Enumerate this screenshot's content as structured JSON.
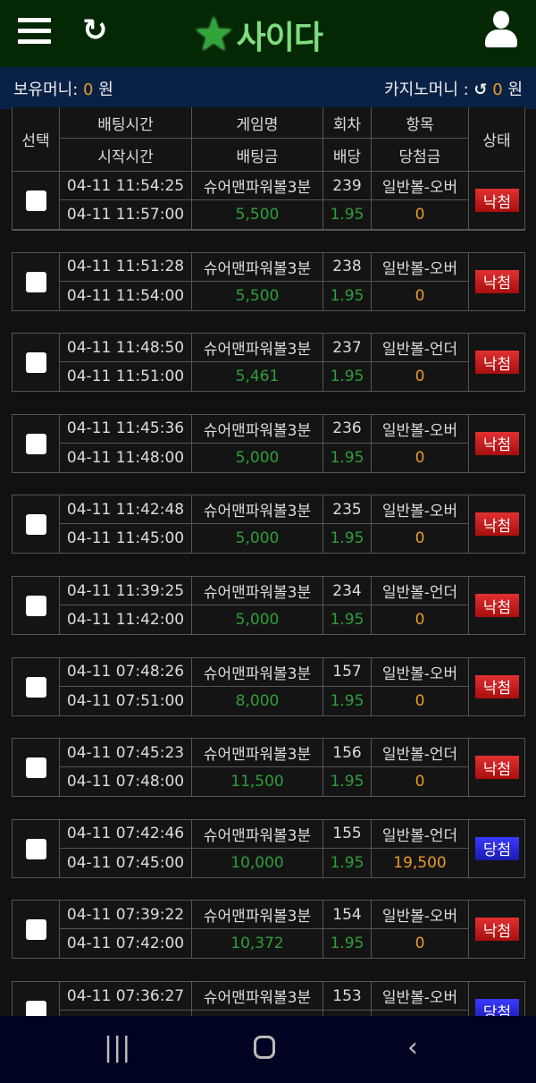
{
  "header": {
    "logo_text": "사이다",
    "logo_badge": "Chilsung Cider",
    "menu_icon": "hamburger-icon",
    "refresh_icon": "refresh-icon",
    "user_icon": "user-icon"
  },
  "balance": {
    "label": "보유머니:",
    "value": "0",
    "unit": "원",
    "casino_label": "카지노머니 :",
    "casino_value": "0",
    "casino_unit": "원"
  },
  "columns": {
    "select": "선택",
    "bet_time": "배팅시간",
    "start_time": "시작시간",
    "game": "게임명",
    "bet_amount": "배팅금",
    "round": "회차",
    "odds": "배당",
    "item": "항목",
    "payout": "당첨금",
    "status": "상태"
  },
  "colors": {
    "lose": "#c81e1e",
    "win": "#2828e0",
    "green": "#2e9e3a",
    "orange": "#e89a2a"
  },
  "rows": [
    {
      "bet_time": "04-11 11:54:25",
      "start_time": "04-11 11:57:00",
      "game": "슈어맨파워볼3분",
      "amount": "5,500",
      "round": "239",
      "odds": "1.95",
      "item": "일반볼-오버",
      "payout": "0",
      "status": "낙첨"
    },
    {
      "bet_time": "04-11 11:51:28",
      "start_time": "04-11 11:54:00",
      "game": "슈어맨파워볼3분",
      "amount": "5,500",
      "round": "238",
      "odds": "1.95",
      "item": "일반볼-오버",
      "payout": "0",
      "status": "낙첨"
    },
    {
      "bet_time": "04-11 11:48:50",
      "start_time": "04-11 11:51:00",
      "game": "슈어맨파워볼3분",
      "amount": "5,461",
      "round": "237",
      "odds": "1.95",
      "item": "일반볼-언더",
      "payout": "0",
      "status": "낙첨"
    },
    {
      "bet_time": "04-11 11:45:36",
      "start_time": "04-11 11:48:00",
      "game": "슈어맨파워볼3분",
      "amount": "5,000",
      "round": "236",
      "odds": "1.95",
      "item": "일반볼-오버",
      "payout": "0",
      "status": "낙첨"
    },
    {
      "bet_time": "04-11 11:42:48",
      "start_time": "04-11 11:45:00",
      "game": "슈어맨파워볼3분",
      "amount": "5,000",
      "round": "235",
      "odds": "1.95",
      "item": "일반볼-오버",
      "payout": "0",
      "status": "낙첨"
    },
    {
      "bet_time": "04-11 11:39:25",
      "start_time": "04-11 11:42:00",
      "game": "슈어맨파워볼3분",
      "amount": "5,000",
      "round": "234",
      "odds": "1.95",
      "item": "일반볼-언더",
      "payout": "0",
      "status": "낙첨"
    },
    {
      "bet_time": "04-11 07:48:26",
      "start_time": "04-11 07:51:00",
      "game": "슈어맨파워볼3분",
      "amount": "8,000",
      "round": "157",
      "odds": "1.95",
      "item": "일반볼-오버",
      "payout": "0",
      "status": "낙첨"
    },
    {
      "bet_time": "04-11 07:45:23",
      "start_time": "04-11 07:48:00",
      "game": "슈어맨파워볼3분",
      "amount": "11,500",
      "round": "156",
      "odds": "1.95",
      "item": "일반볼-언더",
      "payout": "0",
      "status": "낙첨"
    },
    {
      "bet_time": "04-11 07:42:46",
      "start_time": "04-11 07:45:00",
      "game": "슈어맨파워볼3분",
      "amount": "10,000",
      "round": "155",
      "odds": "1.95",
      "item": "일반볼-언더",
      "payout": "19,500",
      "status": "당첨"
    },
    {
      "bet_time": "04-11 07:39:22",
      "start_time": "04-11 07:42:00",
      "game": "슈어맨파워볼3분",
      "amount": "10,372",
      "round": "154",
      "odds": "1.95",
      "item": "일반볼-오버",
      "payout": "0",
      "status": "낙첨"
    },
    {
      "bet_time": "04-11 07:36:27",
      "start_time": "",
      "game": "슈어맨파워볼3분",
      "amount": "",
      "round": "153",
      "odds": "",
      "item": "일반볼-오버",
      "payout": "",
      "status": "당첨"
    }
  ],
  "navbar": {
    "recent_icon": "recent-apps-icon",
    "home_icon": "home-icon",
    "back_icon": "back-icon"
  }
}
